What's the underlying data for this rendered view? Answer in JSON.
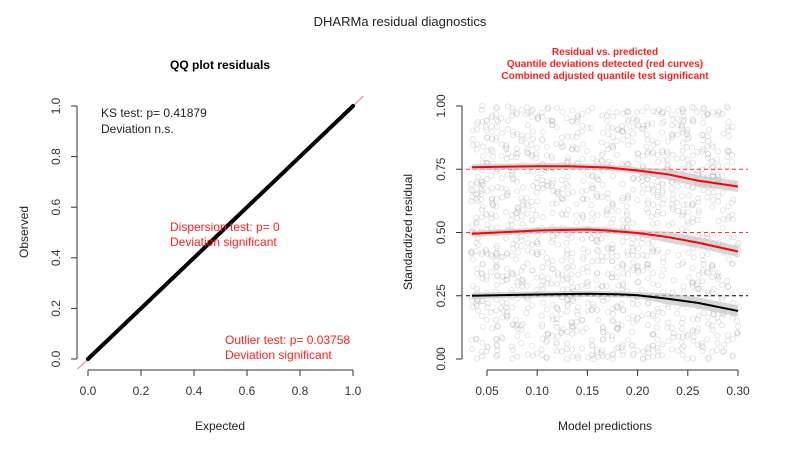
{
  "title": "DHARMa residual diagnostics",
  "chart_data": [
    {
      "type": "line",
      "title": "QQ plot residuals",
      "xlabel": "Expected",
      "ylabel": "Observed",
      "xlim": [
        0,
        1
      ],
      "ylim": [
        0,
        1
      ],
      "xticks": [
        "0.0",
        "0.2",
        "0.4",
        "0.6",
        "0.8",
        "1.0"
      ],
      "yticks": [
        "0.0",
        "0.2",
        "0.4",
        "0.6",
        "0.8",
        "1.0"
      ],
      "series": [
        {
          "x": [
            0,
            0.1,
            0.2,
            0.3,
            0.4,
            0.5,
            0.6,
            0.7,
            0.8,
            0.9,
            1.0
          ],
          "values": [
            0,
            0.1,
            0.2,
            0.3,
            0.4,
            0.5,
            0.6,
            0.7,
            0.8,
            0.9,
            1.0
          ]
        }
      ],
      "reference_line": "y = x",
      "annotations": {
        "ks": [
          "KS test: p= 0.41879",
          "Deviation  n.s."
        ],
        "dispersion": [
          "Dispersion test: p= 0",
          "Deviation  significant"
        ],
        "outlier": [
          "Outlier test: p= 0.03758",
          "Deviation  significant"
        ]
      },
      "colors": {
        "points": "#000000",
        "reference": "#e08080",
        "significant": "#ff0000",
        "ns": "#000000"
      }
    },
    {
      "type": "scatter",
      "title_lines": [
        "Residual vs. predicted",
        "Quantile deviations detected (red curves)",
        "Combined adjusted quantile test significant"
      ],
      "xlabel": "Model predictions",
      "ylabel": "Standardized residual",
      "xlim": [
        0.035,
        0.3
      ],
      "ylim": [
        0,
        1
      ],
      "xticks": [
        "0.05",
        "0.10",
        "0.15",
        "0.20",
        "0.25",
        "0.30"
      ],
      "yticks": [
        "0.00",
        "0.25",
        "0.50",
        "0.75",
        "1.00"
      ],
      "reference_lines": [
        0.25,
        0.5,
        0.75
      ],
      "quantile_curves": [
        {
          "quantile": 0.75,
          "color": "#ff0000",
          "x": [
            0.035,
            0.1,
            0.13,
            0.17,
            0.2,
            0.23,
            0.26,
            0.3
          ],
          "values": [
            0.758,
            0.762,
            0.762,
            0.757,
            0.745,
            0.73,
            0.705,
            0.682
          ]
        },
        {
          "quantile": 0.5,
          "color": "#ff0000",
          "x": [
            0.035,
            0.1,
            0.15,
            0.17,
            0.2,
            0.23,
            0.26,
            0.3
          ],
          "values": [
            0.495,
            0.508,
            0.512,
            0.508,
            0.498,
            0.482,
            0.46,
            0.425
          ]
        },
        {
          "quantile": 0.25,
          "color": "#000000",
          "x": [
            0.035,
            0.1,
            0.15,
            0.18,
            0.2,
            0.23,
            0.26,
            0.3
          ],
          "values": [
            0.25,
            0.255,
            0.258,
            0.256,
            0.252,
            0.238,
            0.222,
            0.19
          ]
        }
      ],
      "colors": {
        "points": "#999999",
        "title": "#ff0000"
      }
    }
  ]
}
